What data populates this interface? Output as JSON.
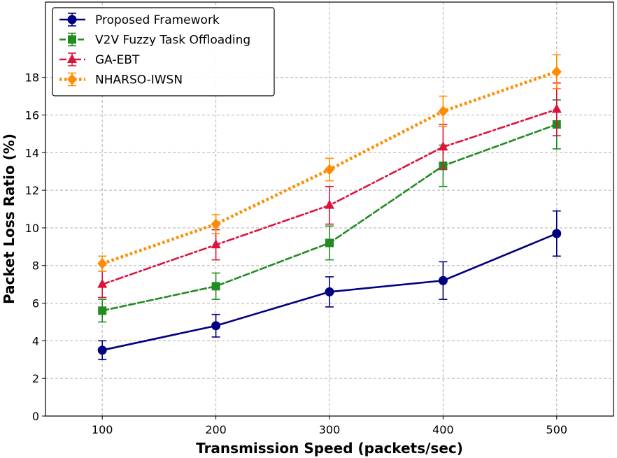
{
  "chart_data": {
    "type": "line",
    "title": "",
    "xlabel": "Transmission Speed (packets/sec)",
    "ylabel": "Packet Loss Ratio (%)",
    "x": [
      100,
      200,
      300,
      400,
      500
    ],
    "xlim": [
      50,
      550
    ],
    "ylim": [
      0,
      22
    ],
    "xticks": [
      100,
      200,
      300,
      400,
      500
    ],
    "yticks": [
      0,
      2,
      4,
      6,
      8,
      10,
      12,
      14,
      16,
      18
    ],
    "grid": true,
    "legend_position": "upper-left",
    "series": [
      {
        "name": "Proposed Framework",
        "color": "#000080",
        "marker": "circle",
        "linestyle": "solid",
        "values": [
          3.5,
          4.8,
          6.6,
          7.2,
          9.7
        ],
        "errors": [
          0.5,
          0.6,
          0.8,
          1.0,
          1.2
        ]
      },
      {
        "name": "V2V Fuzzy Task Offloading",
        "color": "#228B22",
        "marker": "square",
        "linestyle": "dashed",
        "values": [
          5.6,
          6.9,
          9.2,
          13.3,
          15.5
        ],
        "errors": [
          0.6,
          0.7,
          0.9,
          1.1,
          1.3
        ]
      },
      {
        "name": "GA-EBT",
        "color": "#DC143C",
        "marker": "triangle",
        "linestyle": "dashdot",
        "values": [
          7.0,
          9.1,
          11.2,
          14.3,
          16.3
        ],
        "errors": [
          0.7,
          0.8,
          1.0,
          1.2,
          1.4
        ]
      },
      {
        "name": "NHARSO-IWSN",
        "color": "#FF8C00",
        "marker": "diamond",
        "linestyle": "dotted",
        "values": [
          8.1,
          10.2,
          13.1,
          16.2,
          18.3
        ],
        "errors": [
          0.4,
          0.5,
          0.6,
          0.8,
          0.9
        ]
      }
    ]
  }
}
